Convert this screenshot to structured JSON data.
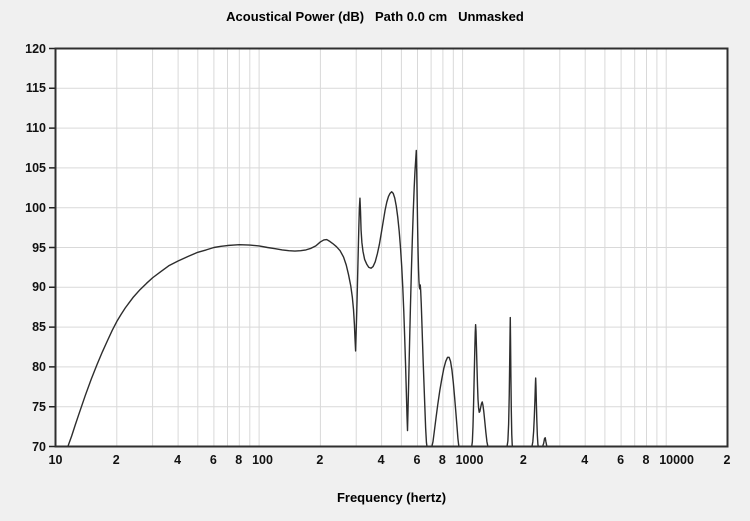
{
  "title": "Acoustical Power (dB)   Path 0.0 cm   Unmasked",
  "chart_data": {
    "type": "line",
    "title": "Acoustical Power (dB)   Path 0.0 cm   Unmasked",
    "xlabel": "Frequency (hertz)",
    "ylabel": "Acoustical Power (dB)",
    "x_scale": "log",
    "xlim": [
      10,
      20000
    ],
    "ylim": [
      70,
      120
    ],
    "grid": true,
    "legend": "none",
    "colors": {
      "page_background": "#f0f0f0",
      "plot_background": "#ffffff",
      "grid": "#d9d9d9",
      "border": "#2f2f2f",
      "curve": "#2d2d2d",
      "text": "#111111"
    },
    "y_ticks": [
      120,
      115,
      110,
      105,
      100,
      95,
      90,
      85,
      80,
      75,
      70
    ],
    "y_gridlines": [
      115,
      110,
      105,
      100,
      95,
      90,
      85,
      80,
      75
    ],
    "x_gridlines": [
      20,
      30,
      40,
      50,
      60,
      70,
      80,
      90,
      100,
      200,
      300,
      400,
      500,
      600,
      700,
      800,
      900,
      1000,
      2000,
      3000,
      4000,
      5000,
      6000,
      7000,
      8000,
      9000,
      10000
    ],
    "x_tick_labels": [
      {
        "f": 10,
        "label": "10"
      },
      {
        "f": 20,
        "label": "2"
      },
      {
        "f": 40,
        "label": "4"
      },
      {
        "f": 60,
        "label": "6"
      },
      {
        "f": 80,
        "label": "8"
      },
      {
        "f": 100,
        "label": "100"
      },
      {
        "f": 200,
        "label": "2"
      },
      {
        "f": 400,
        "label": "4"
      },
      {
        "f": 600,
        "label": "6"
      },
      {
        "f": 800,
        "label": "8"
      },
      {
        "f": 1000,
        "label": "1000"
      },
      {
        "f": 2000,
        "label": "2"
      },
      {
        "f": 4000,
        "label": "4"
      },
      {
        "f": 6000,
        "label": "6"
      },
      {
        "f": 8000,
        "label": "8"
      },
      {
        "f": 10000,
        "label": "10000"
      },
      {
        "f": 20000,
        "label": "2"
      }
    ],
    "series": [
      {
        "name": "acoustical-power",
        "points": [
          [
            11.5,
            70
          ],
          [
            12,
            71.3
          ],
          [
            12.5,
            72.7
          ],
          [
            13,
            74
          ],
          [
            14,
            76.4
          ],
          [
            15,
            78.5
          ],
          [
            16,
            80.3
          ],
          [
            17,
            81.9
          ],
          [
            18,
            83.3
          ],
          [
            19,
            84.6
          ],
          [
            20,
            85.7
          ],
          [
            21,
            86.6
          ],
          [
            22,
            87.4
          ],
          [
            24,
            88.7
          ],
          [
            26,
            89.7
          ],
          [
            28,
            90.5
          ],
          [
            30,
            91.2
          ],
          [
            33,
            92
          ],
          [
            36,
            92.7
          ],
          [
            40,
            93.3
          ],
          [
            45,
            93.9
          ],
          [
            50,
            94.4
          ],
          [
            55,
            94.7
          ],
          [
            60,
            95
          ],
          [
            65,
            95.15
          ],
          [
            70,
            95.25
          ],
          [
            75,
            95.3
          ],
          [
            80,
            95.35
          ],
          [
            90,
            95.3
          ],
          [
            100,
            95.2
          ],
          [
            110,
            95
          ],
          [
            120,
            94.85
          ],
          [
            130,
            94.7
          ],
          [
            140,
            94.6
          ],
          [
            150,
            94.55
          ],
          [
            160,
            94.6
          ],
          [
            170,
            94.7
          ],
          [
            180,
            94.9
          ],
          [
            190,
            95.2
          ],
          [
            200,
            95.7
          ],
          [
            208,
            95.95
          ],
          [
            215,
            96
          ],
          [
            223,
            95.75
          ],
          [
            230,
            95.5
          ],
          [
            240,
            95.1
          ],
          [
            250,
            94.6
          ],
          [
            260,
            93.8
          ],
          [
            268,
            92.8
          ],
          [
            275,
            91.6
          ],
          [
            282,
            90.2
          ],
          [
            287,
            88.8
          ],
          [
            291,
            87.2
          ],
          [
            294,
            85.3
          ],
          [
            296,
            83.5
          ],
          [
            298,
            82
          ],
          [
            300,
            84.5
          ],
          [
            303,
            88.5
          ],
          [
            306,
            93
          ],
          [
            309,
            97.5
          ],
          [
            311,
            100
          ],
          [
            313,
            101.2
          ],
          [
            315,
            99.5
          ],
          [
            317,
            97.2
          ],
          [
            320,
            95.6
          ],
          [
            324,
            94.5
          ],
          [
            330,
            93.5
          ],
          [
            338,
            92.9
          ],
          [
            346,
            92.5
          ],
          [
            355,
            92.4
          ],
          [
            363,
            92.6
          ],
          [
            372,
            93.2
          ],
          [
            381,
            94.2
          ],
          [
            390,
            95.4
          ],
          [
            399,
            96.9
          ],
          [
            408,
            98.4
          ],
          [
            416,
            99.7
          ],
          [
            424,
            100.7
          ],
          [
            432,
            101.4
          ],
          [
            440,
            101.8
          ],
          [
            448,
            102
          ],
          [
            456,
            101.8
          ],
          [
            464,
            101.2
          ],
          [
            472,
            100.2
          ],
          [
            480,
            98.8
          ],
          [
            488,
            97
          ],
          [
            495,
            95
          ],
          [
            502,
            92.6
          ],
          [
            508,
            90
          ],
          [
            514,
            86.9
          ],
          [
            519,
            83.8
          ],
          [
            524,
            80.5
          ],
          [
            529,
            76.8
          ],
          [
            533,
            73.8
          ],
          [
            536,
            72
          ],
          [
            539,
            74.5
          ],
          [
            543,
            78
          ],
          [
            548,
            82.5
          ],
          [
            554,
            87.5
          ],
          [
            560,
            92
          ],
          [
            566,
            96
          ],
          [
            572,
            99.5
          ],
          [
            578,
            102.5
          ],
          [
            583,
            104.5
          ],
          [
            588,
            106
          ],
          [
            592,
            107.2
          ],
          [
            595,
            104.5
          ],
          [
            598,
            101
          ],
          [
            601,
            97.5
          ],
          [
            604,
            94.5
          ],
          [
            607,
            92.3
          ],
          [
            610,
            90.8
          ],
          [
            613,
            90
          ],
          [
            616,
            89.8
          ],
          [
            619,
            90.3
          ],
          [
            622,
            89.6
          ],
          [
            626,
            88
          ],
          [
            630,
            85.9
          ],
          [
            635,
            83.2
          ],
          [
            640,
            80.6
          ],
          [
            646,
            77.8
          ],
          [
            652,
            75
          ],
          [
            658,
            72.3
          ],
          [
            664,
            70.5
          ],
          [
            668,
            70
          ],
          [
            706,
            70
          ],
          [
            715,
            70.6
          ],
          [
            725,
            71.8
          ],
          [
            740,
            73.6
          ],
          [
            755,
            75.3
          ],
          [
            772,
            77
          ],
          [
            790,
            78.5
          ],
          [
            808,
            79.8
          ],
          [
            826,
            80.7
          ],
          [
            843,
            81.2
          ],
          [
            858,
            81.2
          ],
          [
            872,
            80.7
          ],
          [
            886,
            79.6
          ],
          [
            900,
            78
          ],
          [
            913,
            76.2
          ],
          [
            926,
            74.3
          ],
          [
            938,
            72.5
          ],
          [
            948,
            71
          ],
          [
            956,
            70.2
          ],
          [
            959,
            70
          ],
          [
            1108,
            70
          ],
          [
            1116,
            70.6
          ],
          [
            1124,
            72.5
          ],
          [
            1132,
            75.5
          ],
          [
            1140,
            79
          ],
          [
            1147,
            82
          ],
          [
            1153,
            84.3
          ],
          [
            1158,
            85.3
          ],
          [
            1163,
            84.5
          ],
          [
            1169,
            82.5
          ],
          [
            1176,
            80
          ],
          [
            1183,
            77.7
          ],
          [
            1190,
            75.9
          ],
          [
            1198,
            74.8
          ],
          [
            1206,
            74.3
          ],
          [
            1215,
            74.4
          ],
          [
            1226,
            74.9
          ],
          [
            1238,
            75.4
          ],
          [
            1248,
            75.6
          ],
          [
            1258,
            75.2
          ],
          [
            1270,
            74.4
          ],
          [
            1284,
            73.2
          ],
          [
            1300,
            71.8
          ],
          [
            1316,
            70.6
          ],
          [
            1328,
            70.1
          ],
          [
            1334,
            70
          ],
          [
            1652,
            70
          ],
          [
            1668,
            70.7
          ],
          [
            1682,
            72.8
          ],
          [
            1694,
            76.5
          ],
          [
            1703,
            80.8
          ],
          [
            1710,
            84.5
          ],
          [
            1714,
            86.2
          ],
          [
            1719,
            83.5
          ],
          [
            1726,
            78.8
          ],
          [
            1734,
            74.5
          ],
          [
            1743,
            71.5
          ],
          [
            1752,
            70.2
          ],
          [
            1758,
            70
          ],
          [
            2190,
            70
          ],
          [
            2212,
            70.6
          ],
          [
            2232,
            71.9
          ],
          [
            2250,
            73.8
          ],
          [
            2266,
            76
          ],
          [
            2277,
            77.8
          ],
          [
            2284,
            78.6
          ],
          [
            2292,
            77.5
          ],
          [
            2302,
            75.5
          ],
          [
            2314,
            73.3
          ],
          [
            2328,
            71.4
          ],
          [
            2342,
            70.3
          ],
          [
            2352,
            70
          ],
          [
            2470,
            70
          ],
          [
            2500,
            70.4
          ],
          [
            2525,
            71
          ],
          [
            2545,
            71.1
          ],
          [
            2565,
            70.6
          ],
          [
            2588,
            70.1
          ],
          [
            2600,
            70
          ],
          [
            20000,
            70
          ]
        ]
      }
    ]
  }
}
